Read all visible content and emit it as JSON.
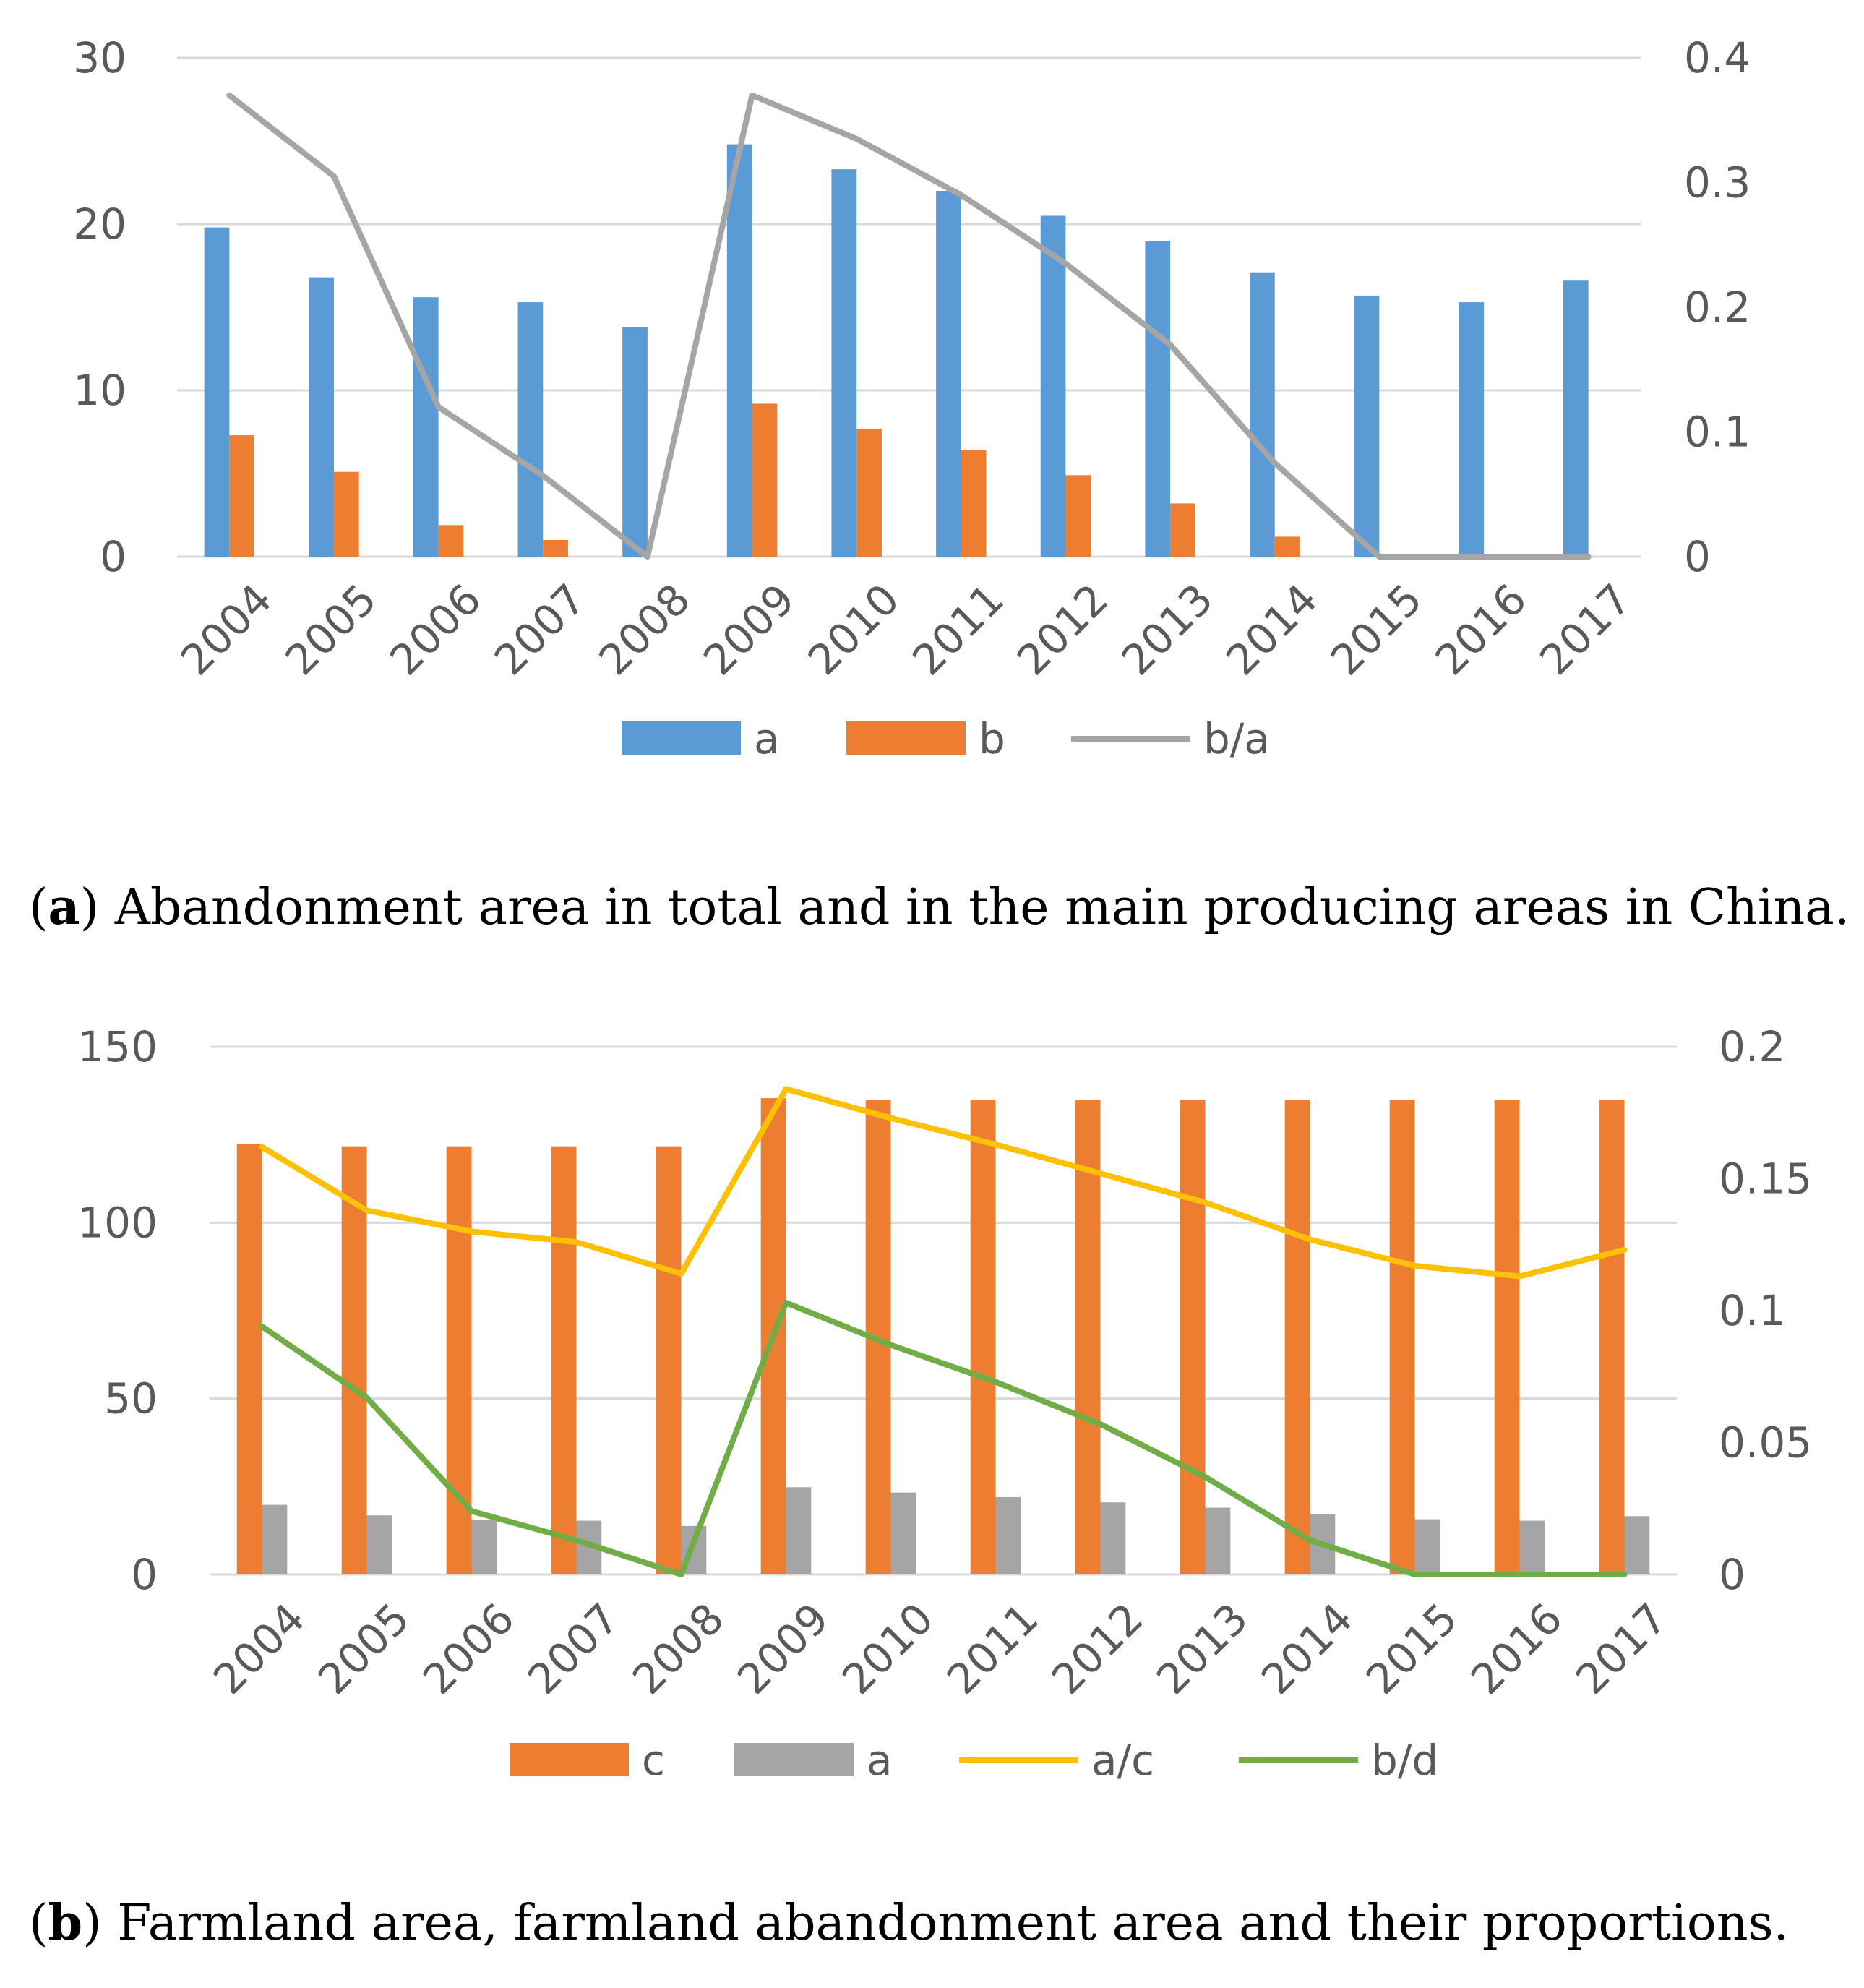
{
  "chart_data": [
    {
      "type": "bar",
      "panel": "a",
      "caption": {
        "label": "a",
        "text": "Abandonment area in total and in the main producing areas in China."
      },
      "categories": [
        "2004",
        "2005",
        "2006",
        "2007",
        "2008",
        "2009",
        "2010",
        "2011",
        "2012",
        "2013",
        "2014",
        "2015",
        "2016",
        "2017"
      ],
      "ylim": [
        0,
        30
      ],
      "yticks": [
        "0",
        "10",
        "20",
        "30"
      ],
      "y2lim": [
        0,
        0.4
      ],
      "y2ticks": [
        "0",
        "0.1",
        "0.2",
        "0.3",
        "0.4"
      ],
      "series": [
        {
          "name": "a",
          "kind": "bar",
          "axis": "left",
          "color": "#5B9BD5",
          "values": [
            19.8,
            16.8,
            15.6,
            15.3,
            13.8,
            24.8,
            23.3,
            22.0,
            20.5,
            19.0,
            17.1,
            15.7,
            15.3,
            16.6
          ]
        },
        {
          "name": "b",
          "kind": "bar",
          "axis": "left",
          "color": "#ED7D31",
          "values": [
            7.3,
            5.1,
            1.9,
            1.0,
            0.0,
            9.2,
            7.7,
            6.4,
            4.9,
            3.2,
            1.2,
            0.0,
            0.0,
            0.0
          ]
        },
        {
          "name": "b/a",
          "kind": "line",
          "axis": "right",
          "color": "#A5A5A5",
          "values": [
            0.37,
            0.305,
            0.12,
            0.065,
            0.0,
            0.37,
            0.335,
            0.29,
            0.235,
            0.17,
            0.075,
            0.0,
            0.0,
            0.0
          ]
        }
      ]
    },
    {
      "type": "bar",
      "panel": "b",
      "caption": {
        "label": "b",
        "text": "Farmland area, farmland abandonment area and their proportions."
      },
      "categories": [
        "2004",
        "2005",
        "2006",
        "2007",
        "2008",
        "2009",
        "2010",
        "2011",
        "2012",
        "2013",
        "2014",
        "2015",
        "2016",
        "2017"
      ],
      "ylim": [
        0,
        150
      ],
      "yticks": [
        "0",
        "50",
        "100",
        "150"
      ],
      "y2lim": [
        0,
        0.2
      ],
      "y2ticks": [
        "0",
        "0.05",
        "0.1",
        "0.15",
        "0.2"
      ],
      "series": [
        {
          "name": "c",
          "kind": "bar",
          "axis": "left",
          "color": "#ED7D31",
          "values": [
            122.4,
            121.7,
            121.7,
            121.7,
            121.7,
            135.4,
            135.0,
            135.0,
            135.0,
            135.0,
            135.0,
            135.0,
            135.0,
            135.0
          ]
        },
        {
          "name": "a",
          "kind": "bar",
          "axis": "left",
          "color": "#A5A5A5",
          "values": [
            19.8,
            16.8,
            15.6,
            15.3,
            13.8,
            24.8,
            23.3,
            22.0,
            20.5,
            19.0,
            17.1,
            15.7,
            15.3,
            16.6
          ]
        },
        {
          "name": "a/c",
          "kind": "line",
          "axis": "right",
          "color": "#FFC000",
          "values": [
            0.162,
            0.138,
            0.13,
            0.126,
            0.114,
            0.184,
            0.173,
            0.163,
            0.152,
            0.141,
            0.127,
            0.117,
            0.113,
            0.123
          ]
        },
        {
          "name": "b/d",
          "kind": "line",
          "axis": "right",
          "color": "#70AD47",
          "values": [
            0.094,
            0.067,
            0.024,
            0.013,
            0.0,
            0.103,
            0.087,
            0.073,
            0.057,
            0.037,
            0.013,
            0.0,
            0.0,
            0.0
          ]
        }
      ]
    }
  ]
}
